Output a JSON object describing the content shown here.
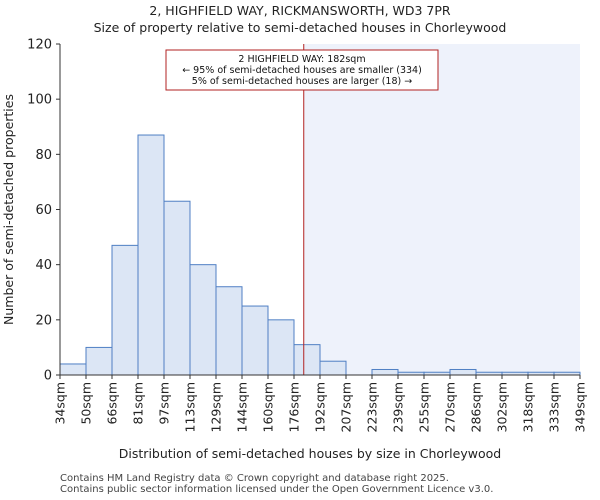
{
  "chart_data": {
    "type": "histogram",
    "title": "2, HIGHFIELD WAY, RICKMANSWORTH, WD3 7PR",
    "subtitle": "Size of property relative to semi-detached houses in Chorleywood",
    "xlabel": "Distribution of semi-detached houses by size in Chorleywood",
    "ylabel": "Number of semi-detached properties",
    "ylim": [
      0,
      120
    ],
    "yticks": [
      0,
      20,
      40,
      60,
      80,
      100,
      120
    ],
    "categories": [
      "34sqm",
      "50sqm",
      "66sqm",
      "81sqm",
      "97sqm",
      "113sqm",
      "129sqm",
      "144sqm",
      "160sqm",
      "176sqm",
      "192sqm",
      "207sqm",
      "223sqm",
      "239sqm",
      "255sqm",
      "270sqm",
      "286sqm",
      "302sqm",
      "318sqm",
      "333sqm",
      "349sqm"
    ],
    "values": [
      4,
      10,
      47,
      87,
      63,
      40,
      32,
      25,
      20,
      11,
      5,
      0,
      2,
      1,
      1,
      2,
      1,
      1,
      1,
      1
    ],
    "bar_color": "#dce6f5",
    "bar_edge_color": "#4f7fc4",
    "highlight_color": "#eef2fb",
    "marker": {
      "value_sqm": 182,
      "color": "#b22222",
      "annotation": [
        "2 HIGHFIELD WAY: 182sqm",
        "← 95% of semi-detached houses are smaller (334)",
        "5% of semi-detached houses are larger (18) →"
      ]
    }
  },
  "footer": {
    "line1": "Contains HM Land Registry data © Crown copyright and database right 2025.",
    "line2": "Contains public sector information licensed under the Open Government Licence v3.0."
  }
}
